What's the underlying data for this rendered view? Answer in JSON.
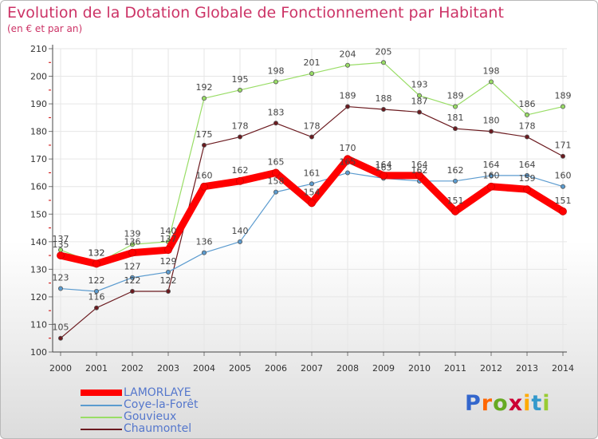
{
  "header": {
    "title": "Evolution de la Dotation Globale de Fonctionnement par Habitant",
    "subtitle": "(en € et par an)"
  },
  "logo": {
    "letters": [
      "P",
      "r",
      "o",
      "x",
      "i",
      "t",
      "i"
    ],
    "colors": [
      "#3366cc",
      "#ff6600",
      "#66aa22",
      "#cc0033",
      "#ffaa00",
      "#3399cc",
      "#99cc33"
    ]
  },
  "colors": {
    "title": "#cc3366",
    "axis": "#444444",
    "grid": "#e6e6e6",
    "tick": "#cc0000"
  },
  "chart_data": {
    "type": "line",
    "x": [
      "2000",
      "2001",
      "2002",
      "2003",
      "2004",
      "2005",
      "2006",
      "2007",
      "2008",
      "2009",
      "2010",
      "2011",
      "2012",
      "2013",
      "2014"
    ],
    "ylim": [
      100,
      210
    ],
    "yticks": [
      "100",
      "110",
      "120",
      "130",
      "140",
      "150",
      "160",
      "170",
      "180",
      "190",
      "200",
      "210"
    ],
    "grid": true,
    "legend_position": "bottom-left",
    "series": [
      {
        "name": "Chaumontel",
        "color": "#6b1a1f",
        "width": 1.2,
        "marker": 4,
        "values": [
          105,
          116,
          122,
          122,
          175,
          178,
          183,
          178,
          189,
          188,
          187,
          181,
          180,
          178,
          171
        ],
        "labels": [
          "105",
          "116",
          "122",
          "122",
          "175",
          "178",
          "183",
          "178",
          "189",
          "188",
          "187",
          "181",
          "180",
          "178",
          "171"
        ]
      },
      {
        "name": "Coye-la-Forêt",
        "color": "#5b9bcf",
        "width": 1.2,
        "marker": 4,
        "values": [
          123,
          122,
          127,
          129,
          136,
          140,
          158,
          161,
          165,
          163,
          162,
          162,
          164,
          164,
          160
        ],
        "labels": [
          "123",
          "122",
          "127",
          "129",
          "136",
          "140",
          "158",
          "161",
          "165",
          "163",
          "162",
          "162",
          "164",
          "164",
          "160"
        ]
      },
      {
        "name": "Gouvieux",
        "color": "#99dd66",
        "width": 1.2,
        "marker": 4,
        "values": [
          137,
          132,
          139,
          140,
          192,
          195,
          198,
          201,
          204,
          205,
          193,
          189,
          198,
          186,
          189
        ],
        "labels": [
          "137",
          "132",
          "139",
          "140",
          "192",
          "195",
          "198",
          "201",
          "204",
          "205",
          "193",
          "189",
          "198",
          "186",
          "189"
        ]
      },
      {
        "name": "LAMORLAYE",
        "color": "#ff0000",
        "width": 9,
        "marker": 7,
        "values": [
          135,
          132,
          136,
          137,
          160,
          162,
          165,
          154,
          170,
          164,
          164,
          151,
          160,
          159,
          151
        ],
        "labels": [
          "135",
          "132",
          "136",
          "137",
          "160",
          "162",
          "165",
          "154",
          "170",
          "164",
          "164",
          "151",
          "160",
          "159",
          "151"
        ]
      }
    ],
    "legend": [
      {
        "name": "LAMORLAYE",
        "color": "#ff0000",
        "thick": true,
        "text_color": "#5577cc"
      },
      {
        "name": "Coye-la-Forêt",
        "color": "#5b9bcf",
        "thick": false,
        "text_color": "#5577cc"
      },
      {
        "name": "Gouvieux",
        "color": "#99dd66",
        "thick": false,
        "text_color": "#5577cc"
      },
      {
        "name": "Chaumontel",
        "color": "#6b1a1f",
        "thick": false,
        "text_color": "#5577cc"
      }
    ]
  }
}
